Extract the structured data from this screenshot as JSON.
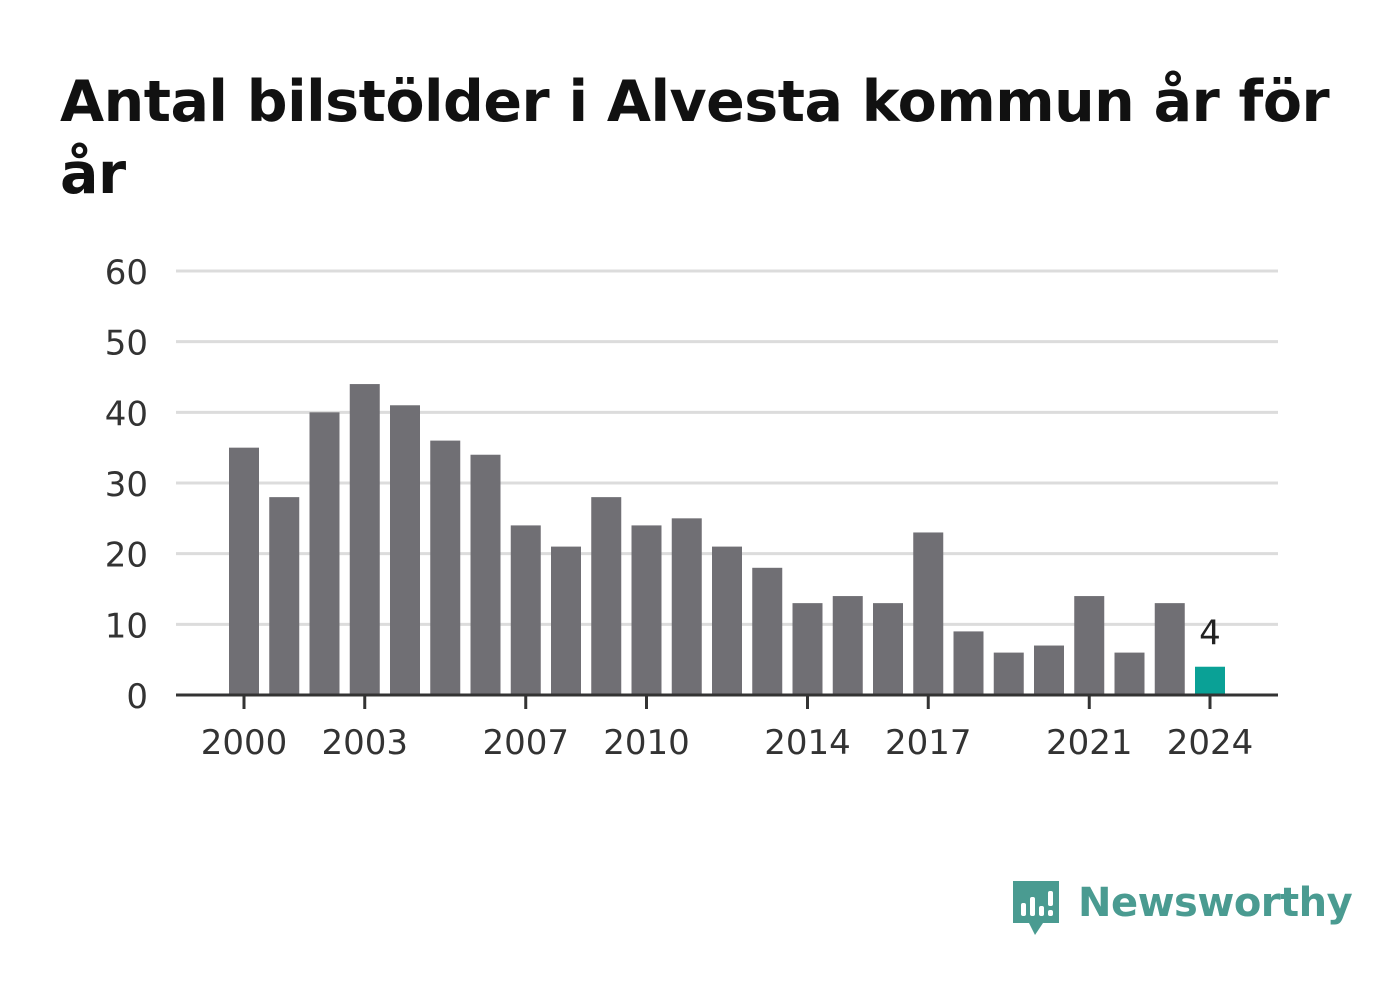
{
  "colors": {
    "bar": "#706f74",
    "highlight": "#0aa196",
    "grid": "#dcdcdc",
    "axis": "#333333",
    "tick_text": "#333333",
    "title": "#111111",
    "brand": "#4a9b91"
  },
  "brand": {
    "name": "Newsworthy",
    "icon": "newsworthy-logo-icon"
  },
  "chart_data": {
    "type": "bar",
    "title": "Antal bilstölder i Alvesta kommun år för år",
    "xlabel": "",
    "ylabel": "",
    "ylim": [
      0,
      60
    ],
    "yticks": [
      "0",
      "10",
      "20",
      "30",
      "40",
      "50",
      "60"
    ],
    "grid": true,
    "categories": [
      "2000",
      "2001",
      "2002",
      "2003",
      "2004",
      "2005",
      "2006",
      "2007",
      "2008",
      "2009",
      "2010",
      "2011",
      "2012",
      "2013",
      "2014",
      "2015",
      "2016",
      "2017",
      "2018",
      "2019",
      "2020",
      "2021",
      "2022",
      "2023",
      "2024"
    ],
    "values": [
      35,
      28,
      40,
      44,
      41,
      36,
      34,
      24,
      21,
      28,
      24,
      25,
      21,
      18,
      13,
      14,
      13,
      23,
      9,
      6,
      7,
      14,
      6,
      13,
      4
    ],
    "xtick_labels": [
      "2000",
      "2003",
      "2007",
      "2010",
      "2014",
      "2017",
      "2021",
      "2024"
    ],
    "highlight": {
      "category": "2024",
      "label": "4"
    }
  }
}
